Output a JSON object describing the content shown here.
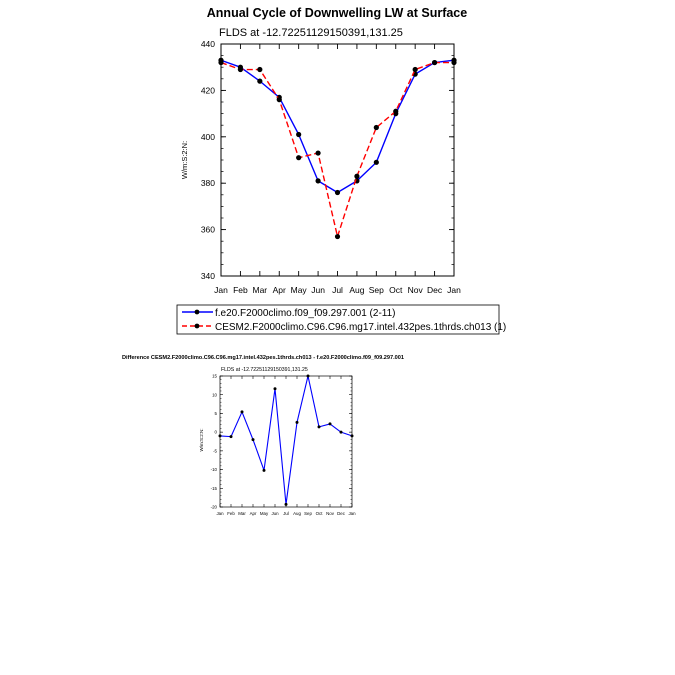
{
  "chart_data": [
    {
      "type": "line",
      "title": "Annual Cycle of Downwelling LW at Surface",
      "subtitle": "FLDS at -12.72251129150391,131.25",
      "xlabel": "",
      "ylabel": "W/m:S:2:N:",
      "categories": [
        "Jan",
        "Feb",
        "Mar",
        "Apr",
        "May",
        "Jun",
        "Jul",
        "Aug",
        "Sep",
        "Oct",
        "Nov",
        "Dec",
        "Jan"
      ],
      "ylim": [
        340,
        440
      ],
      "yticks": [
        "340",
        "360",
        "380",
        "400",
        "420",
        "440"
      ],
      "grid": false,
      "legend_position": "bottom",
      "series": [
        {
          "name": "f.e20.F2000climo.f09_f09.297.001 (2-11)",
          "color": "#0000ff",
          "style": "solid",
          "values": [
            433,
            430,
            424,
            417,
            401,
            381,
            376,
            381,
            389,
            410,
            427,
            432,
            433
          ]
        },
        {
          "name": "CESM2.F2000climo.C96.C96.mg17.intel.432pes.1thrds.ch013 (1)",
          "color": "#ff0000",
          "style": "dashed",
          "values": [
            432,
            429,
            429,
            416,
            391,
            393,
            357,
            383,
            404,
            411,
            429,
            432,
            432
          ]
        }
      ]
    },
    {
      "type": "line",
      "title": "Difference CESM2.F2000climo.C96.C96.mg17.intel.432pes.1thrds.ch013 - f.e20.F2000climo.f09_f09.297.001",
      "subtitle": "FLDS at -12.72251129150391,131.25",
      "xlabel": "",
      "ylabel": "W/m:S:2:N:",
      "categories": [
        "Jan",
        "Feb",
        "Mar",
        "Apr",
        "May",
        "Jun",
        "Jul",
        "Aug",
        "Sep",
        "Oct",
        "Nov",
        "Dec",
        "Jan"
      ],
      "ylim": [
        -20,
        15
      ],
      "yticks": [
        "-20",
        "-15",
        "-10",
        "-5",
        "0",
        "5",
        "10",
        "15"
      ],
      "grid": false,
      "series": [
        {
          "color": "#0000ff",
          "style": "solid",
          "values": [
            -1,
            -1.2,
            5.4,
            -2,
            -10.2,
            11.6,
            -19.3,
            2.6,
            15,
            1.4,
            2.2,
            0,
            -1
          ]
        }
      ]
    }
  ]
}
